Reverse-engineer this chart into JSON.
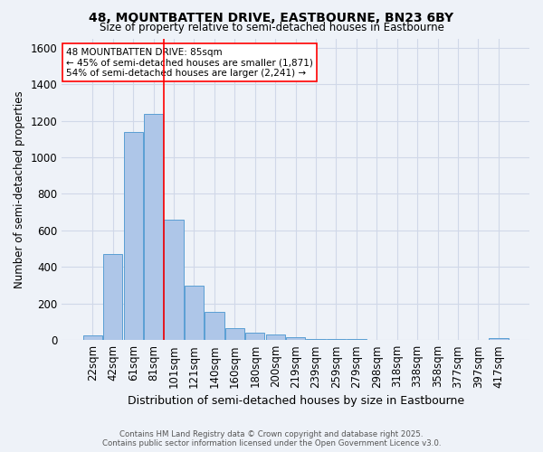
{
  "title": "48, MOUNTBATTEN DRIVE, EASTBOURNE, BN23 6BY",
  "subtitle": "Size of property relative to semi-detached houses in Eastbourne",
  "xlabel": "Distribution of semi-detached houses by size in Eastbourne",
  "ylabel": "Number of semi-detached properties",
  "categories": [
    "22sqm",
    "42sqm",
    "61sqm",
    "81sqm",
    "101sqm",
    "121sqm",
    "140sqm",
    "160sqm",
    "180sqm",
    "200sqm",
    "219sqm",
    "239sqm",
    "259sqm",
    "279sqm",
    "298sqm",
    "318sqm",
    "338sqm",
    "358sqm",
    "377sqm",
    "397sqm",
    "417sqm"
  ],
  "values": [
    25,
    470,
    1140,
    1235,
    660,
    300,
    155,
    65,
    40,
    33,
    18,
    8,
    5,
    8,
    3,
    3,
    2,
    2,
    1,
    1,
    10
  ],
  "bar_color": "#aec6e8",
  "bar_edge_color": "#5a9fd4",
  "grid_color": "#d0d8e8",
  "background_color": "#eef2f8",
  "red_line_x": 3.5,
  "annotation_title": "48 MOUNTBATTEN DRIVE: 85sqm",
  "annotation_line1": "← 45% of semi-detached houses are smaller (1,871)",
  "annotation_line2": "54% of semi-detached houses are larger (2,241) →",
  "footer1": "Contains HM Land Registry data © Crown copyright and database right 2025.",
  "footer2": "Contains public sector information licensed under the Open Government Licence v3.0.",
  "ylim": [
    0,
    1650
  ],
  "figsize": [
    6.0,
    5.0
  ],
  "dpi": 100
}
